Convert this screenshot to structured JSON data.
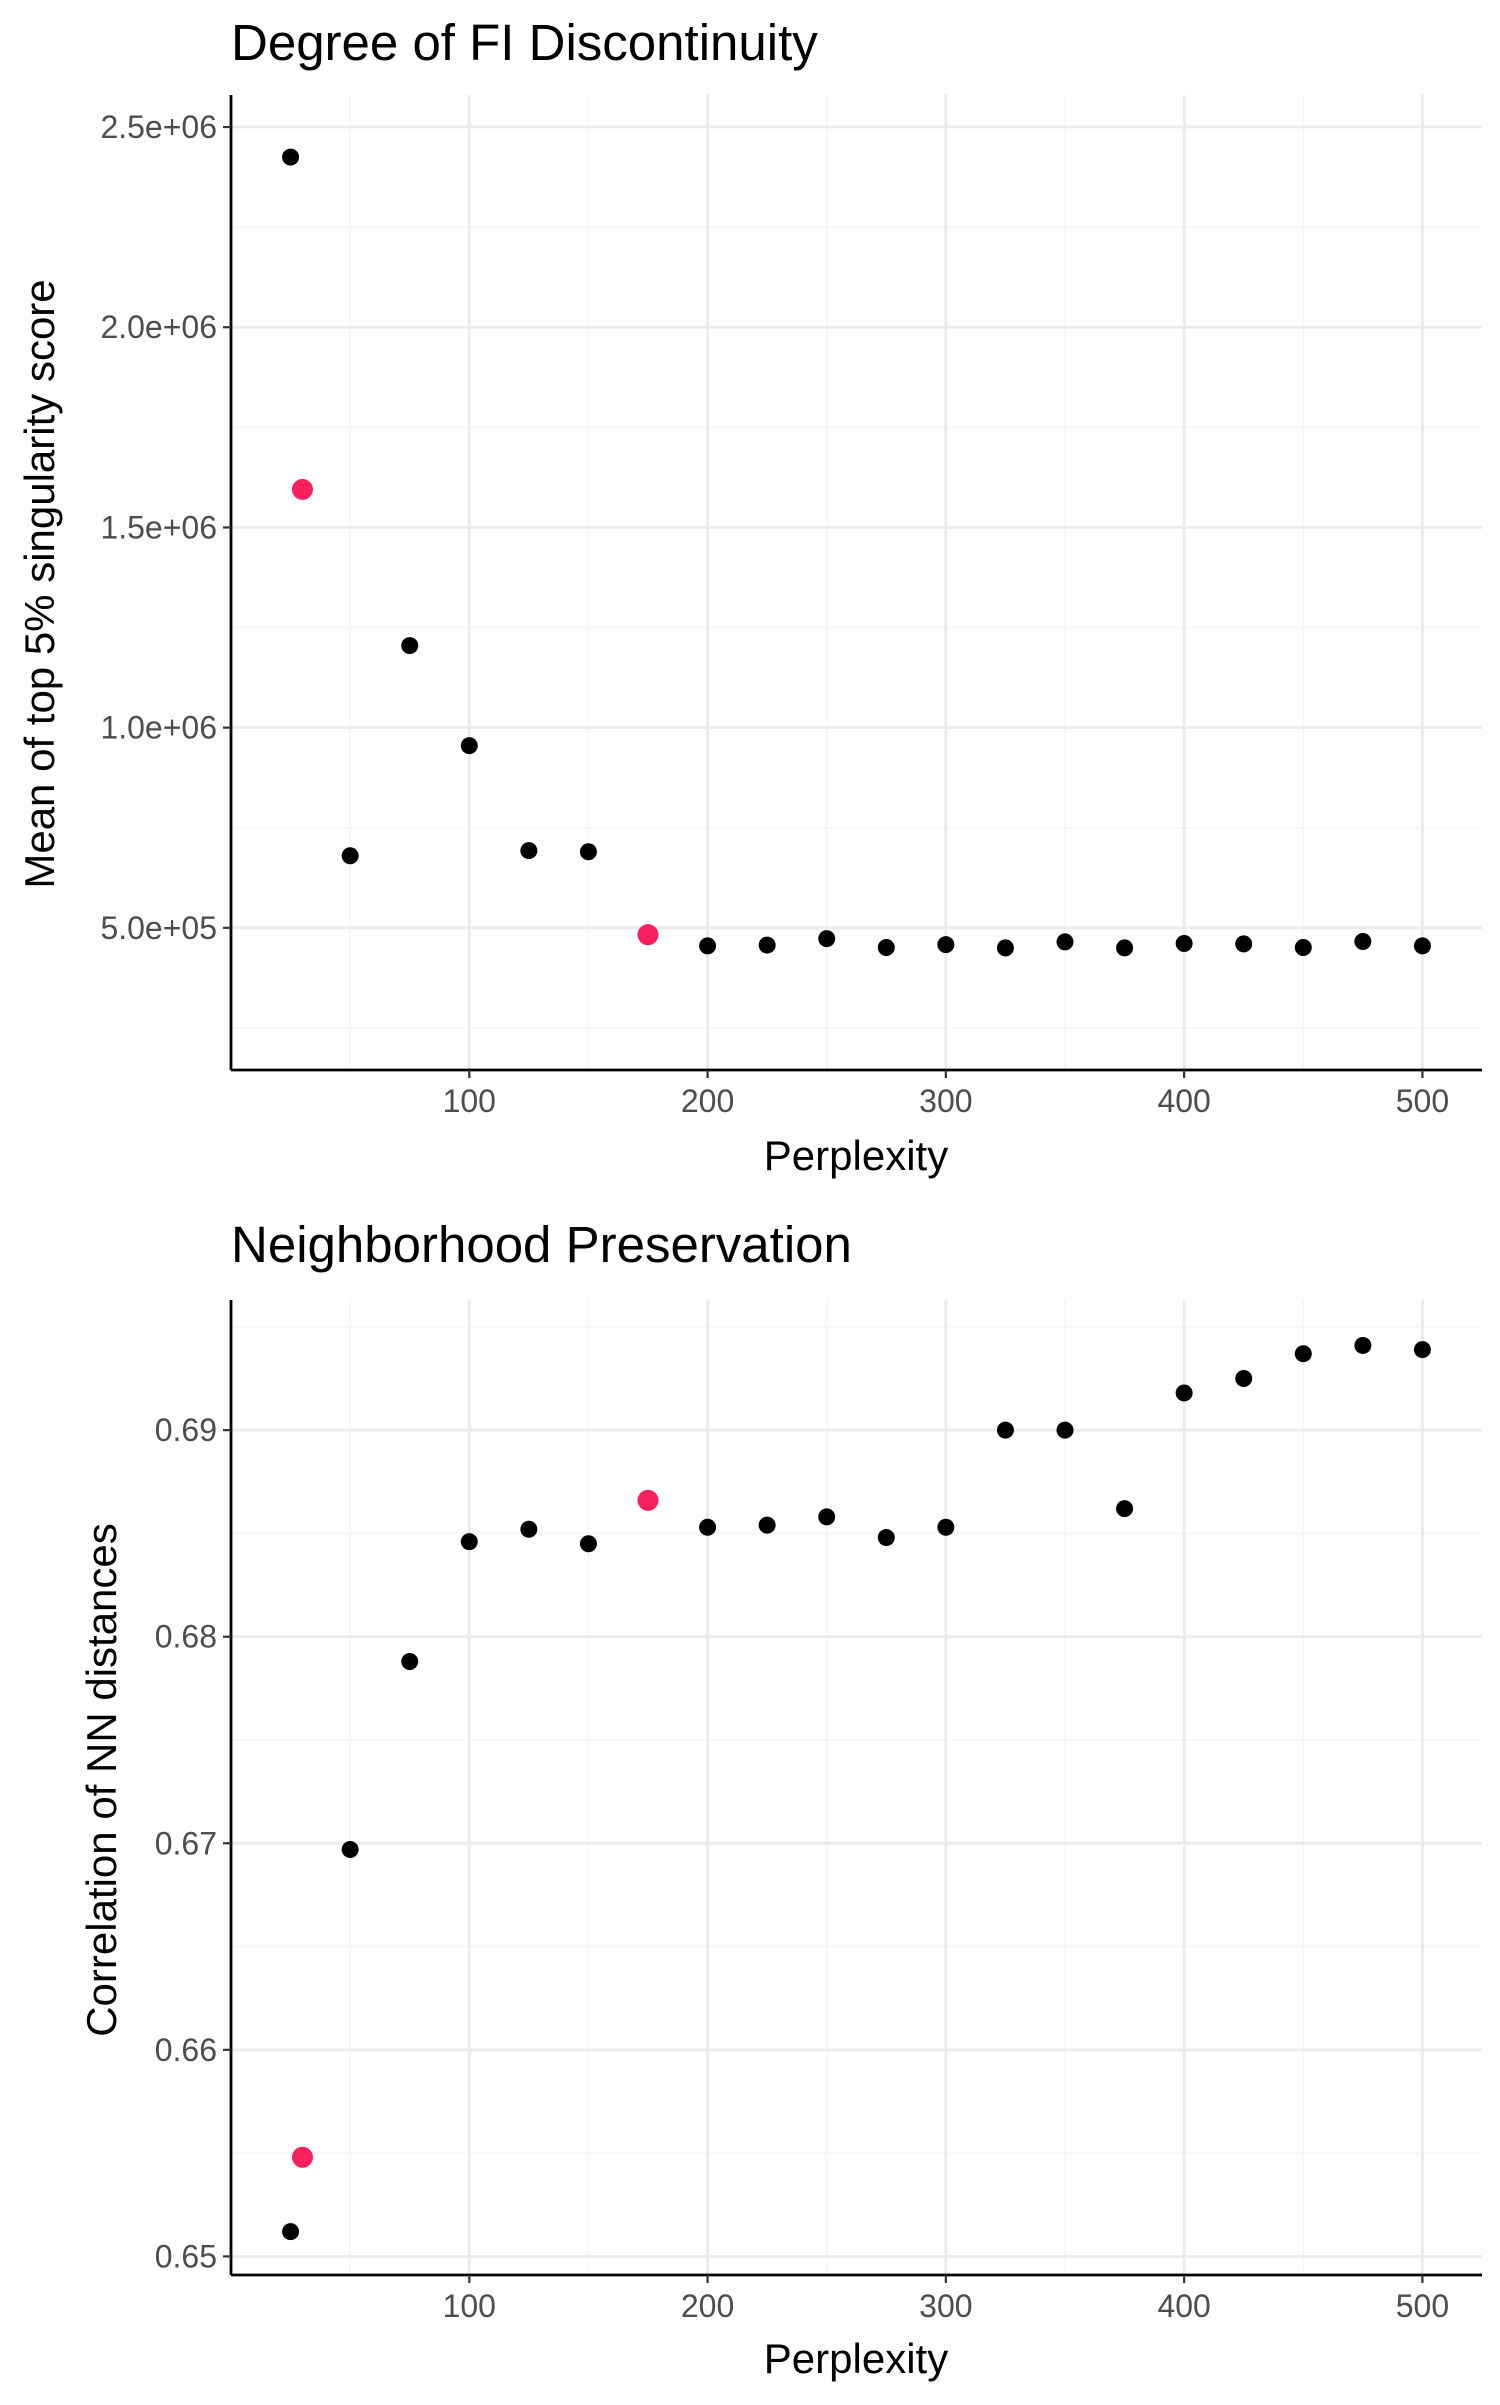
{
  "chart_data": [
    {
      "type": "scatter",
      "title": "Degree of FI Discontinuity",
      "xlabel": "Perplexity",
      "ylabel": "Mean of top 5% singularity score",
      "xlim": [
        0,
        525
      ],
      "ylim": [
        145000,
        2580000
      ],
      "x_ticks": [
        100,
        200,
        300,
        400,
        500
      ],
      "x_tick_labels": [
        "100",
        "200",
        "300",
        "400",
        "500"
      ],
      "y_ticks": [
        500000,
        1000000,
        1500000,
        2000000,
        2500000
      ],
      "y_tick_labels": [
        "5.0e+05",
        "1.0e+06",
        "1.5e+06",
        "2.0e+06",
        "2.5e+06"
      ],
      "grid": true,
      "legend": "none",
      "colors": {
        "default": "#000000",
        "highlight": "#f8215e"
      },
      "points": [
        {
          "x": 25,
          "y": 2425000,
          "highlight": false
        },
        {
          "x": 30,
          "y": 1595000,
          "highlight": true
        },
        {
          "x": 50,
          "y": 680000,
          "highlight": false
        },
        {
          "x": 75,
          "y": 1205000,
          "highlight": false
        },
        {
          "x": 100,
          "y": 955000,
          "highlight": false
        },
        {
          "x": 125,
          "y": 693000,
          "highlight": false
        },
        {
          "x": 150,
          "y": 690000,
          "highlight": false
        },
        {
          "x": 175,
          "y": 483000,
          "highlight": true
        },
        {
          "x": 200,
          "y": 455000,
          "highlight": false
        },
        {
          "x": 225,
          "y": 457000,
          "highlight": false
        },
        {
          "x": 250,
          "y": 473000,
          "highlight": false
        },
        {
          "x": 275,
          "y": 451000,
          "highlight": false
        },
        {
          "x": 300,
          "y": 458000,
          "highlight": false
        },
        {
          "x": 325,
          "y": 450000,
          "highlight": false
        },
        {
          "x": 350,
          "y": 465000,
          "highlight": false
        },
        {
          "x": 375,
          "y": 450000,
          "highlight": false
        },
        {
          "x": 400,
          "y": 461000,
          "highlight": false
        },
        {
          "x": 425,
          "y": 460000,
          "highlight": false
        },
        {
          "x": 450,
          "y": 451000,
          "highlight": false
        },
        {
          "x": 475,
          "y": 466000,
          "highlight": false
        },
        {
          "x": 500,
          "y": 455000,
          "highlight": false
        }
      ]
    },
    {
      "type": "scatter",
      "title": "Neighborhood Preservation",
      "xlabel": "Perplexity",
      "ylabel": "Correlation of NN distances",
      "xlim": [
        0,
        525
      ],
      "ylim": [
        0.6491,
        0.6963
      ],
      "x_ticks": [
        100,
        200,
        300,
        400,
        500
      ],
      "x_tick_labels": [
        "100",
        "200",
        "300",
        "400",
        "500"
      ],
      "y_ticks": [
        0.65,
        0.66,
        0.67,
        0.68,
        0.69
      ],
      "y_tick_labels": [
        "0.65",
        "0.66",
        "0.67",
        "0.68",
        "0.69"
      ],
      "grid": true,
      "legend": "none",
      "colors": {
        "default": "#000000",
        "highlight": "#f8215e"
      },
      "points": [
        {
          "x": 25,
          "y": 0.6512,
          "highlight": false
        },
        {
          "x": 30,
          "y": 0.6548,
          "highlight": true
        },
        {
          "x": 50,
          "y": 0.6697,
          "highlight": false
        },
        {
          "x": 75,
          "y": 0.6788,
          "highlight": false
        },
        {
          "x": 100,
          "y": 0.6846,
          "highlight": false
        },
        {
          "x": 125,
          "y": 0.6852,
          "highlight": false
        },
        {
          "x": 150,
          "y": 0.6845,
          "highlight": false
        },
        {
          "x": 175,
          "y": 0.6866,
          "highlight": true
        },
        {
          "x": 200,
          "y": 0.6853,
          "highlight": false
        },
        {
          "x": 225,
          "y": 0.6854,
          "highlight": false
        },
        {
          "x": 250,
          "y": 0.6858,
          "highlight": false
        },
        {
          "x": 275,
          "y": 0.6848,
          "highlight": false
        },
        {
          "x": 300,
          "y": 0.6853,
          "highlight": false
        },
        {
          "x": 325,
          "y": 0.69,
          "highlight": false
        },
        {
          "x": 350,
          "y": 0.69,
          "highlight": false
        },
        {
          "x": 375,
          "y": 0.6862,
          "highlight": false
        },
        {
          "x": 400,
          "y": 0.6918,
          "highlight": false
        },
        {
          "x": 425,
          "y": 0.6925,
          "highlight": false
        },
        {
          "x": 450,
          "y": 0.6937,
          "highlight": false
        },
        {
          "x": 475,
          "y": 0.6941,
          "highlight": false
        },
        {
          "x": 500,
          "y": 0.6939,
          "highlight": false
        }
      ]
    }
  ]
}
